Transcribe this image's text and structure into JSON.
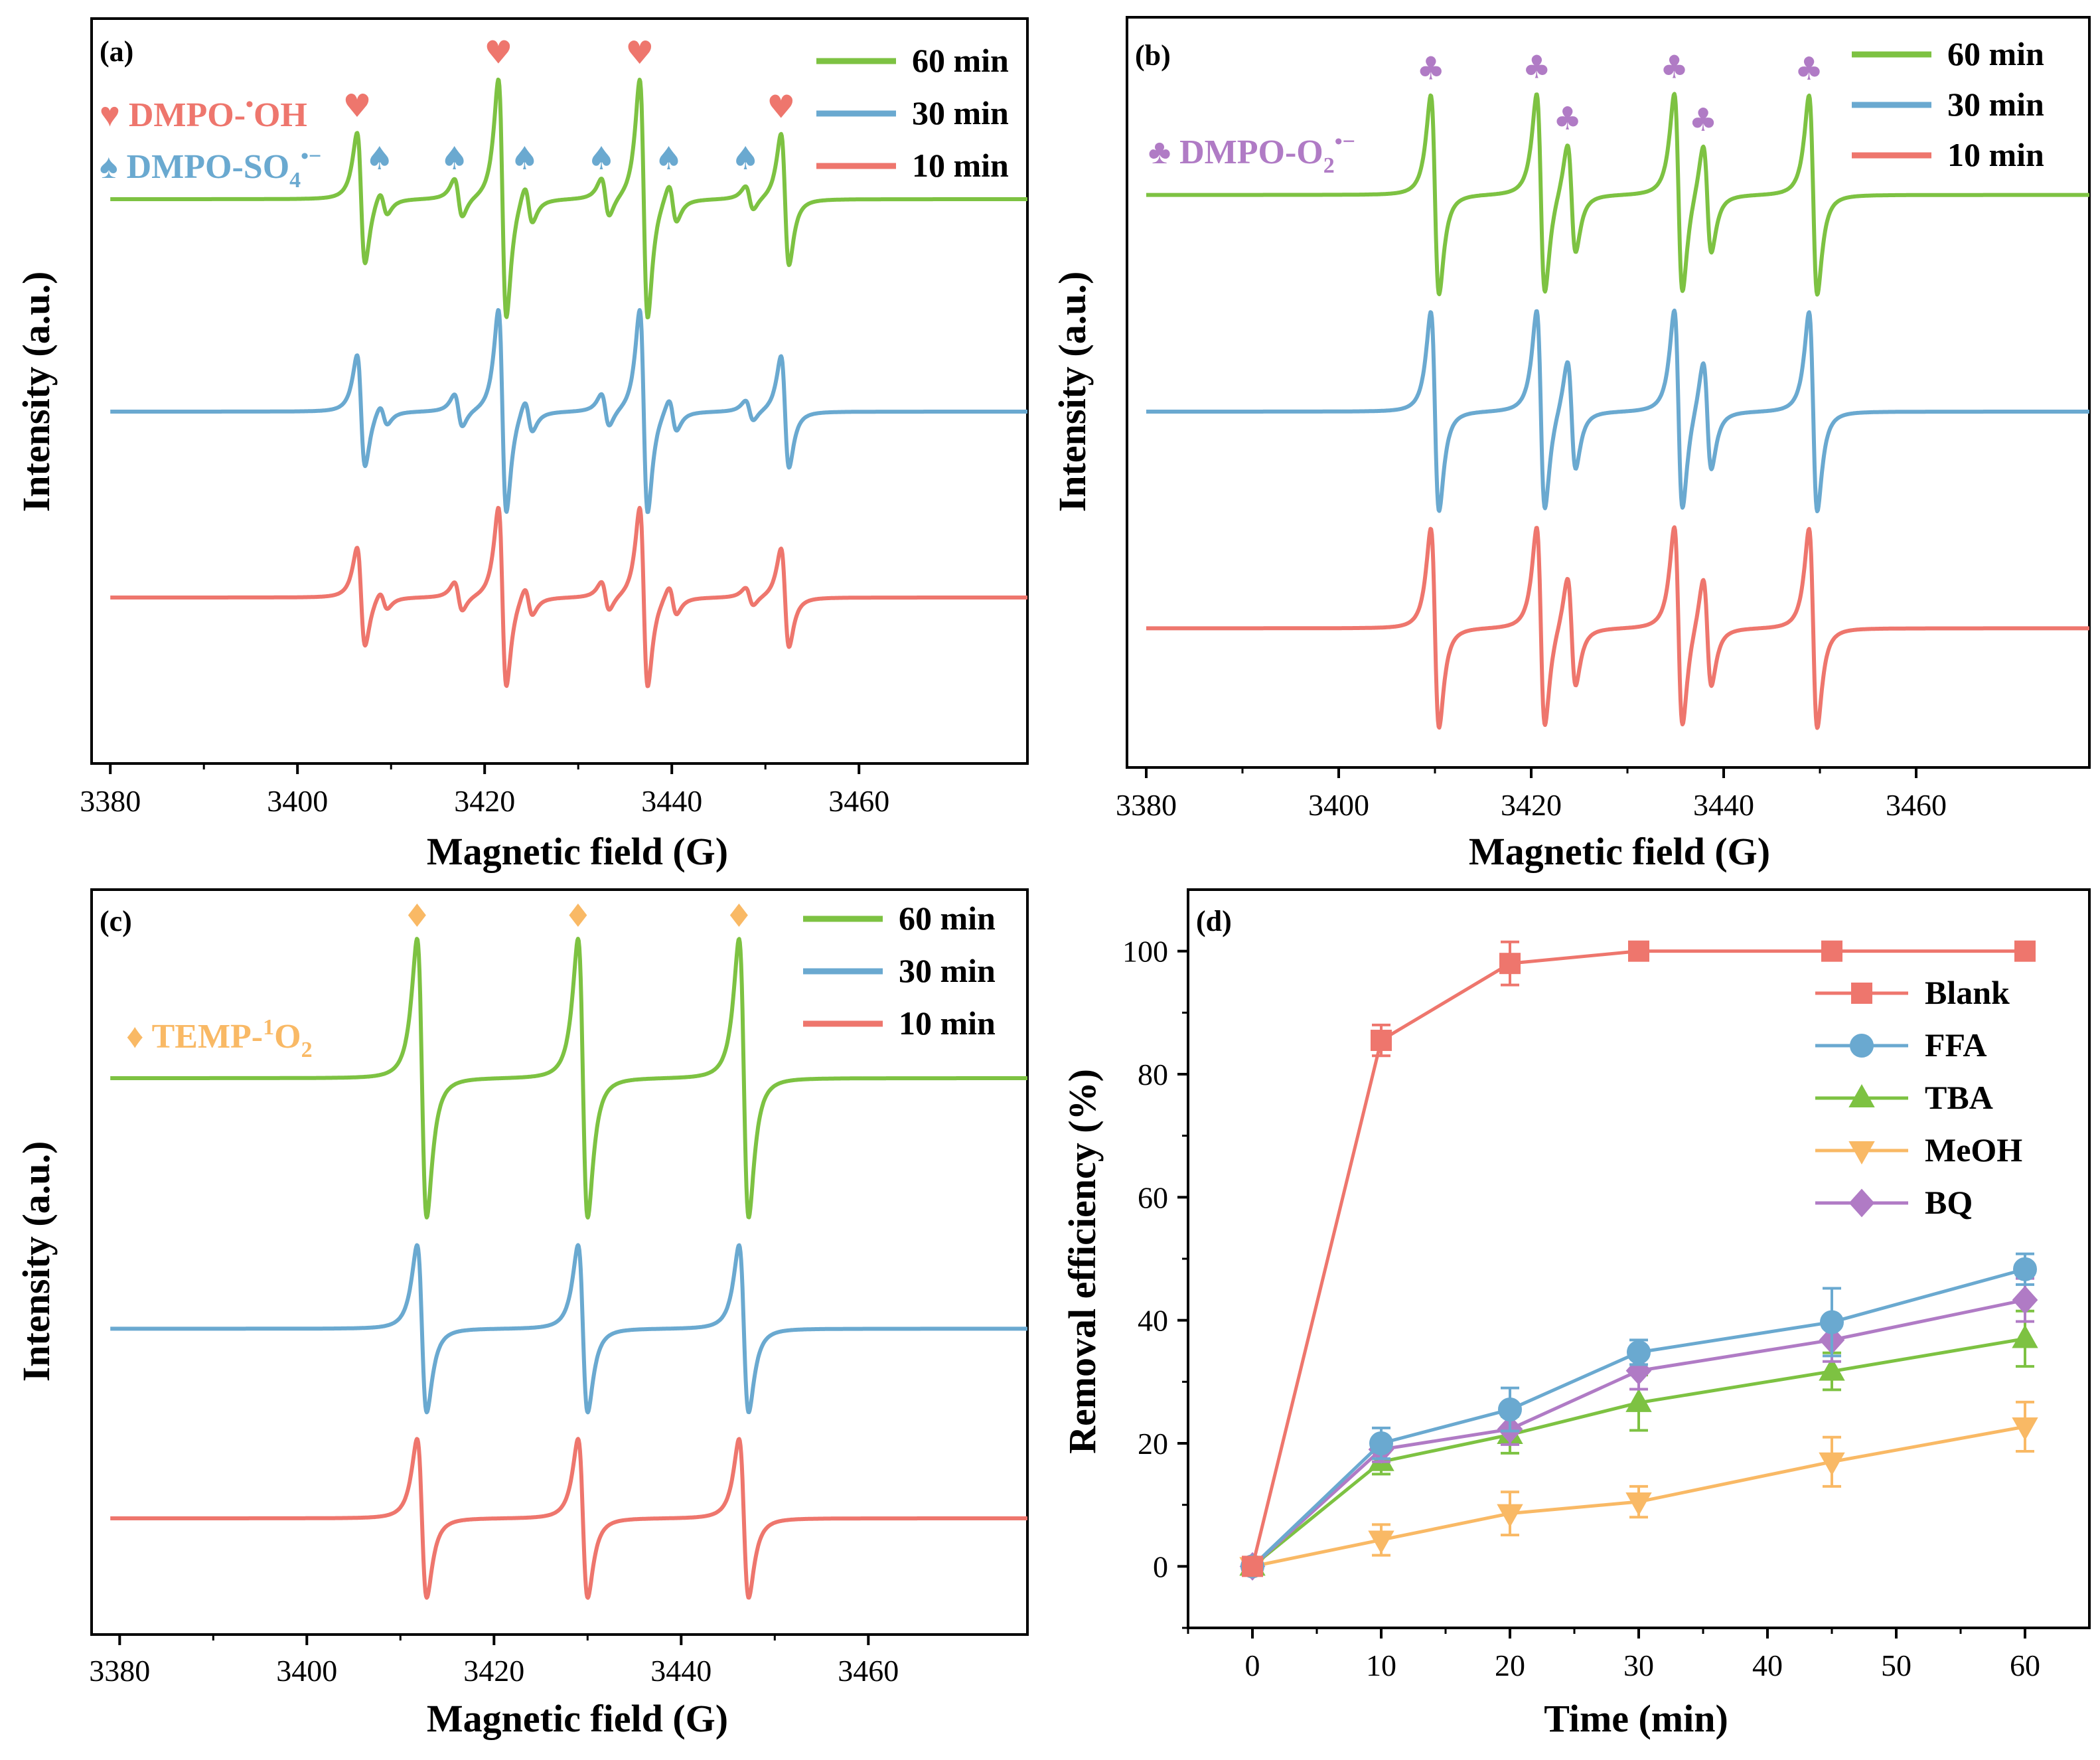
{
  "colors": {
    "green": "#7DC242",
    "blue": "#6AA9D0",
    "red": "#EE766D",
    "orange": "#F9B965",
    "purple": "#B07BC5"
  },
  "chart_data": [
    {
      "panel": "(a)",
      "type": "line",
      "xlabel": "Magnetic field (G)",
      "ylabel": "Intensity (a.u.)",
      "xlim": [
        3378,
        3478
      ],
      "xticks": [
        3380,
        3400,
        3420,
        3440,
        3460
      ],
      "series": [
        {
          "name": "60 min",
          "color": "green",
          "offset": 0.82,
          "amplitude": 1.0
        },
        {
          "name": "30 min",
          "color": "blue",
          "offset": 0.5,
          "amplitude": 0.85
        },
        {
          "name": "10 min",
          "color": "red",
          "offset": 0.22,
          "amplitude": 0.75
        }
      ],
      "species": [
        {
          "symbol": "♥",
          "label": "DMPO-",
          "sup": "•",
          "label_end": "OH",
          "color": "red",
          "peak_positions_G": [
            3406.8,
            3421.9,
            3437.0,
            3452.1
          ],
          "relative_heights": [
            0.55,
            1.0,
            1.0,
            0.55
          ]
        },
        {
          "symbol": "♠",
          "label": "DMPO-SO",
          "sub": "4",
          "sup": "•−",
          "color": "blue",
          "peak_positions_G": [
            3409.2,
            3417.2,
            3424.7,
            3432.9,
            3440.1,
            3448.3
          ],
          "relative_heights": [
            0.1,
            0.16,
            0.16,
            0.16,
            0.16,
            0.1
          ]
        }
      ]
    },
    {
      "panel": "(b)",
      "type": "line",
      "xlabel": "Magnetic field (G)",
      "ylabel": "Intensity (a.u.)",
      "xlim": [
        3378,
        3478
      ],
      "xticks": [
        3380,
        3400,
        3420,
        3440,
        3460
      ],
      "series": [
        {
          "name": "60 min",
          "color": "green",
          "offset": 0.82,
          "amplitude": 1.0
        },
        {
          "name": "30 min",
          "color": "blue",
          "offset": 0.5,
          "amplitude": 1.0
        },
        {
          "name": "10 min",
          "color": "red",
          "offset": 0.18,
          "amplitude": 1.0
        }
      ],
      "species": [
        {
          "symbol": "♣",
          "label": "DMPO-O",
          "sub": "2",
          "sup": "•−",
          "color": "purple",
          "peak_positions_G": [
            3410.0,
            3421.0,
            3424.2,
            3435.3,
            3438.3,
            3449.3
          ],
          "relative_heights": [
            1.0,
            1.0,
            0.55,
            1.0,
            0.55,
            1.0
          ]
        }
      ]
    },
    {
      "panel": "(c)",
      "type": "line",
      "xlabel": "Magnetic field (G)",
      "ylabel": "Intensity (a.u.)",
      "xlim": [
        3377,
        3477
      ],
      "xticks": [
        3380,
        3400,
        3420,
        3440,
        3460
      ],
      "series": [
        {
          "name": "60 min",
          "color": "green",
          "offset": 0.8,
          "amplitude": 1.0
        },
        {
          "name": "30 min",
          "color": "blue",
          "offset": 0.43,
          "amplitude": 0.6
        },
        {
          "name": "10 min",
          "color": "red",
          "offset": 0.15,
          "amplitude": 0.57
        }
      ],
      "species": [
        {
          "symbol": "♦",
          "label": "TEMP-",
          "sup_pre": "1",
          "label_end": "O",
          "sub": "2",
          "color": "orange",
          "peak_positions_G": [
            3412.3,
            3429.5,
            3446.7
          ],
          "relative_heights": [
            1.0,
            1.0,
            1.0
          ]
        }
      ]
    },
    {
      "panel": "(d)",
      "type": "line",
      "xlabel": "Time (min)",
      "ylabel": "Removal efficiency (%)",
      "xlim": [
        -5,
        65
      ],
      "ylim": [
        -10,
        110
      ],
      "xticks": [
        0,
        10,
        20,
        30,
        40,
        50,
        60
      ],
      "yticks": [
        0,
        20,
        40,
        60,
        80,
        100
      ],
      "x": [
        0,
        10,
        20,
        30,
        45,
        60
      ],
      "series": [
        {
          "name": "Blank",
          "color": "red",
          "marker": "square",
          "values": [
            0,
            85.5,
            98.0,
            100,
            100,
            100
          ],
          "errors": [
            0.5,
            2.5,
            3.5,
            0.5,
            0.5,
            0.5
          ]
        },
        {
          "name": "FFA",
          "color": "blue",
          "marker": "circle",
          "values": [
            0,
            20.0,
            25.5,
            34.8,
            39.7,
            48.3
          ],
          "errors": [
            0.5,
            2.5,
            3.5,
            2.0,
            5.5,
            2.5
          ]
        },
        {
          "name": "TBA",
          "color": "green",
          "marker": "triangle-up",
          "values": [
            0,
            17.0,
            21.4,
            26.6,
            31.7,
            37.0
          ],
          "errors": [
            0.5,
            2.0,
            3.0,
            4.5,
            3.0,
            4.5
          ]
        },
        {
          "name": "MeOH",
          "color": "orange",
          "marker": "triangle-down",
          "values": [
            0,
            4.3,
            8.6,
            10.5,
            17.0,
            22.7
          ],
          "errors": [
            0.5,
            2.5,
            3.5,
            2.5,
            4.0,
            4.0
          ]
        },
        {
          "name": "BQ",
          "color": "purple",
          "marker": "diamond",
          "values": [
            0,
            19.0,
            22.3,
            31.8,
            36.8,
            43.3
          ],
          "errors": [
            0.5,
            2.0,
            2.5,
            3.0,
            3.5,
            3.5
          ]
        }
      ]
    }
  ]
}
